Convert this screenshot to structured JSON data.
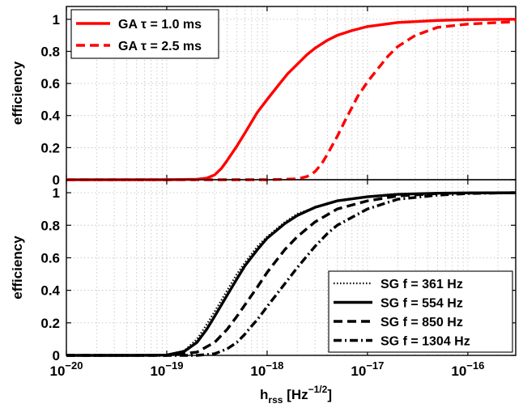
{
  "chart_data": [
    {
      "type": "line",
      "panel": "top",
      "ylabel": "efficiency",
      "xlabel": "",
      "xscale": "log",
      "xlim": [
        1e-20,
        3e-16
      ],
      "ylim": [
        0,
        1.08
      ],
      "yticks": [
        "0",
        "0.2",
        "0.4",
        "0.6",
        "0.8",
        "1"
      ],
      "grid": true,
      "legend_position": "top-left",
      "series": [
        {
          "name": "GA τ = 1.0 ms",
          "color": "#ff0000",
          "style": "solid",
          "x": [
            1e-20,
            1e-19,
            2e-19,
            2.5e-19,
            3e-19,
            3.5e-19,
            4e-19,
            5e-19,
            6e-19,
            7e-19,
            8e-19,
            1e-18,
            1.3e-18,
            1.6e-18,
            2e-18,
            2.5e-18,
            3e-18,
            4e-18,
            5e-18,
            7e-18,
            1e-17,
            2e-17,
            5e-17,
            1e-16,
            3e-16
          ],
          "y": [
            0,
            0,
            0.003,
            0.01,
            0.03,
            0.07,
            0.12,
            0.21,
            0.29,
            0.36,
            0.42,
            0.5,
            0.59,
            0.66,
            0.72,
            0.78,
            0.82,
            0.87,
            0.9,
            0.93,
            0.955,
            0.98,
            0.993,
            0.998,
            1.0
          ]
        },
        {
          "name": "GA τ = 2.5 ms",
          "color": "#ff0000",
          "style": "dashed",
          "x": [
            1e-20,
            1e-18,
            2e-18,
            2.5e-18,
            3e-18,
            3.5e-18,
            4e-18,
            5e-18,
            6e-18,
            7e-18,
            8e-18,
            1e-17,
            1.3e-17,
            1.6e-17,
            2e-17,
            3e-17,
            5e-17,
            1e-16,
            2e-16,
            3e-16
          ],
          "y": [
            0,
            0,
            0.005,
            0.02,
            0.05,
            0.1,
            0.16,
            0.27,
            0.37,
            0.45,
            0.52,
            0.61,
            0.7,
            0.77,
            0.83,
            0.9,
            0.95,
            0.97,
            0.98,
            0.985
          ]
        }
      ]
    },
    {
      "type": "line",
      "panel": "bottom",
      "ylabel": "efficiency",
      "xlabel": "h_rss [Hz^-1/2]",
      "xscale": "log",
      "xlim": [
        1e-20,
        3e-16
      ],
      "ylim": [
        0,
        1.08
      ],
      "xticks": [
        "10−20",
        "10−19",
        "10−18",
        "10−17",
        "10−16"
      ],
      "yticks": [
        "0",
        "0.2",
        "0.4",
        "0.6",
        "0.8",
        "1"
      ],
      "grid": true,
      "legend_position": "bottom-right",
      "series": [
        {
          "name": "SG   f = 361 Hz",
          "color": "#000000",
          "style": "dotted",
          "x": [
            1e-20,
            5e-20,
            1e-19,
            1.5e-19,
            2e-19,
            2.5e-19,
            3e-19,
            4e-19,
            5e-19,
            6e-19,
            8e-19,
            1e-18,
            1.5e-18,
            2e-18,
            3e-18,
            5e-18,
            1e-17,
            2e-17,
            5e-17,
            1e-16,
            3e-16
          ],
          "y": [
            0,
            0,
            0.003,
            0.03,
            0.1,
            0.19,
            0.27,
            0.4,
            0.5,
            0.57,
            0.67,
            0.73,
            0.82,
            0.87,
            0.91,
            0.95,
            0.975,
            0.99,
            0.997,
            0.999,
            1.0
          ]
        },
        {
          "name": "SG   f = 554 Hz",
          "color": "#000000",
          "style": "solid",
          "x": [
            1e-20,
            5e-20,
            1e-19,
            1.5e-19,
            2e-19,
            2.5e-19,
            3e-19,
            4e-19,
            5e-19,
            6e-19,
            8e-19,
            1e-18,
            1.5e-18,
            2e-18,
            3e-18,
            5e-18,
            1e-17,
            2e-17,
            5e-17,
            1e-16,
            3e-16
          ],
          "y": [
            0,
            0,
            0.002,
            0.025,
            0.08,
            0.16,
            0.24,
            0.37,
            0.47,
            0.55,
            0.65,
            0.72,
            0.81,
            0.86,
            0.91,
            0.95,
            0.975,
            0.99,
            0.997,
            0.999,
            1.0
          ]
        },
        {
          "name": "SG   f = 850 Hz",
          "color": "#000000",
          "style": "dashed",
          "x": [
            1e-20,
            1e-19,
            2e-19,
            3e-19,
            4e-19,
            5e-19,
            6e-19,
            8e-19,
            1e-18,
            1.5e-18,
            2e-18,
            3e-18,
            5e-18,
            1e-17,
            2e-17,
            5e-17,
            1e-16,
            3e-16
          ],
          "y": [
            0,
            0,
            0.02,
            0.08,
            0.16,
            0.24,
            0.31,
            0.42,
            0.51,
            0.65,
            0.73,
            0.82,
            0.9,
            0.95,
            0.98,
            0.995,
            0.998,
            1.0
          ]
        },
        {
          "name": "SG   f = 1304 Hz",
          "color": "#000000",
          "style": "dashdot",
          "x": [
            1e-20,
            2e-19,
            3e-19,
            4e-19,
            5e-19,
            6e-19,
            7e-19,
            8e-19,
            1e-18,
            1.5e-18,
            2e-18,
            3e-18,
            4e-18,
            5e-18,
            1e-17,
            2e-17,
            5e-17,
            1e-16,
            3e-16
          ],
          "y": [
            0,
            0,
            0.01,
            0.04,
            0.08,
            0.13,
            0.18,
            0.22,
            0.3,
            0.44,
            0.54,
            0.67,
            0.75,
            0.8,
            0.9,
            0.96,
            0.985,
            0.995,
            1.0
          ]
        }
      ]
    }
  ]
}
